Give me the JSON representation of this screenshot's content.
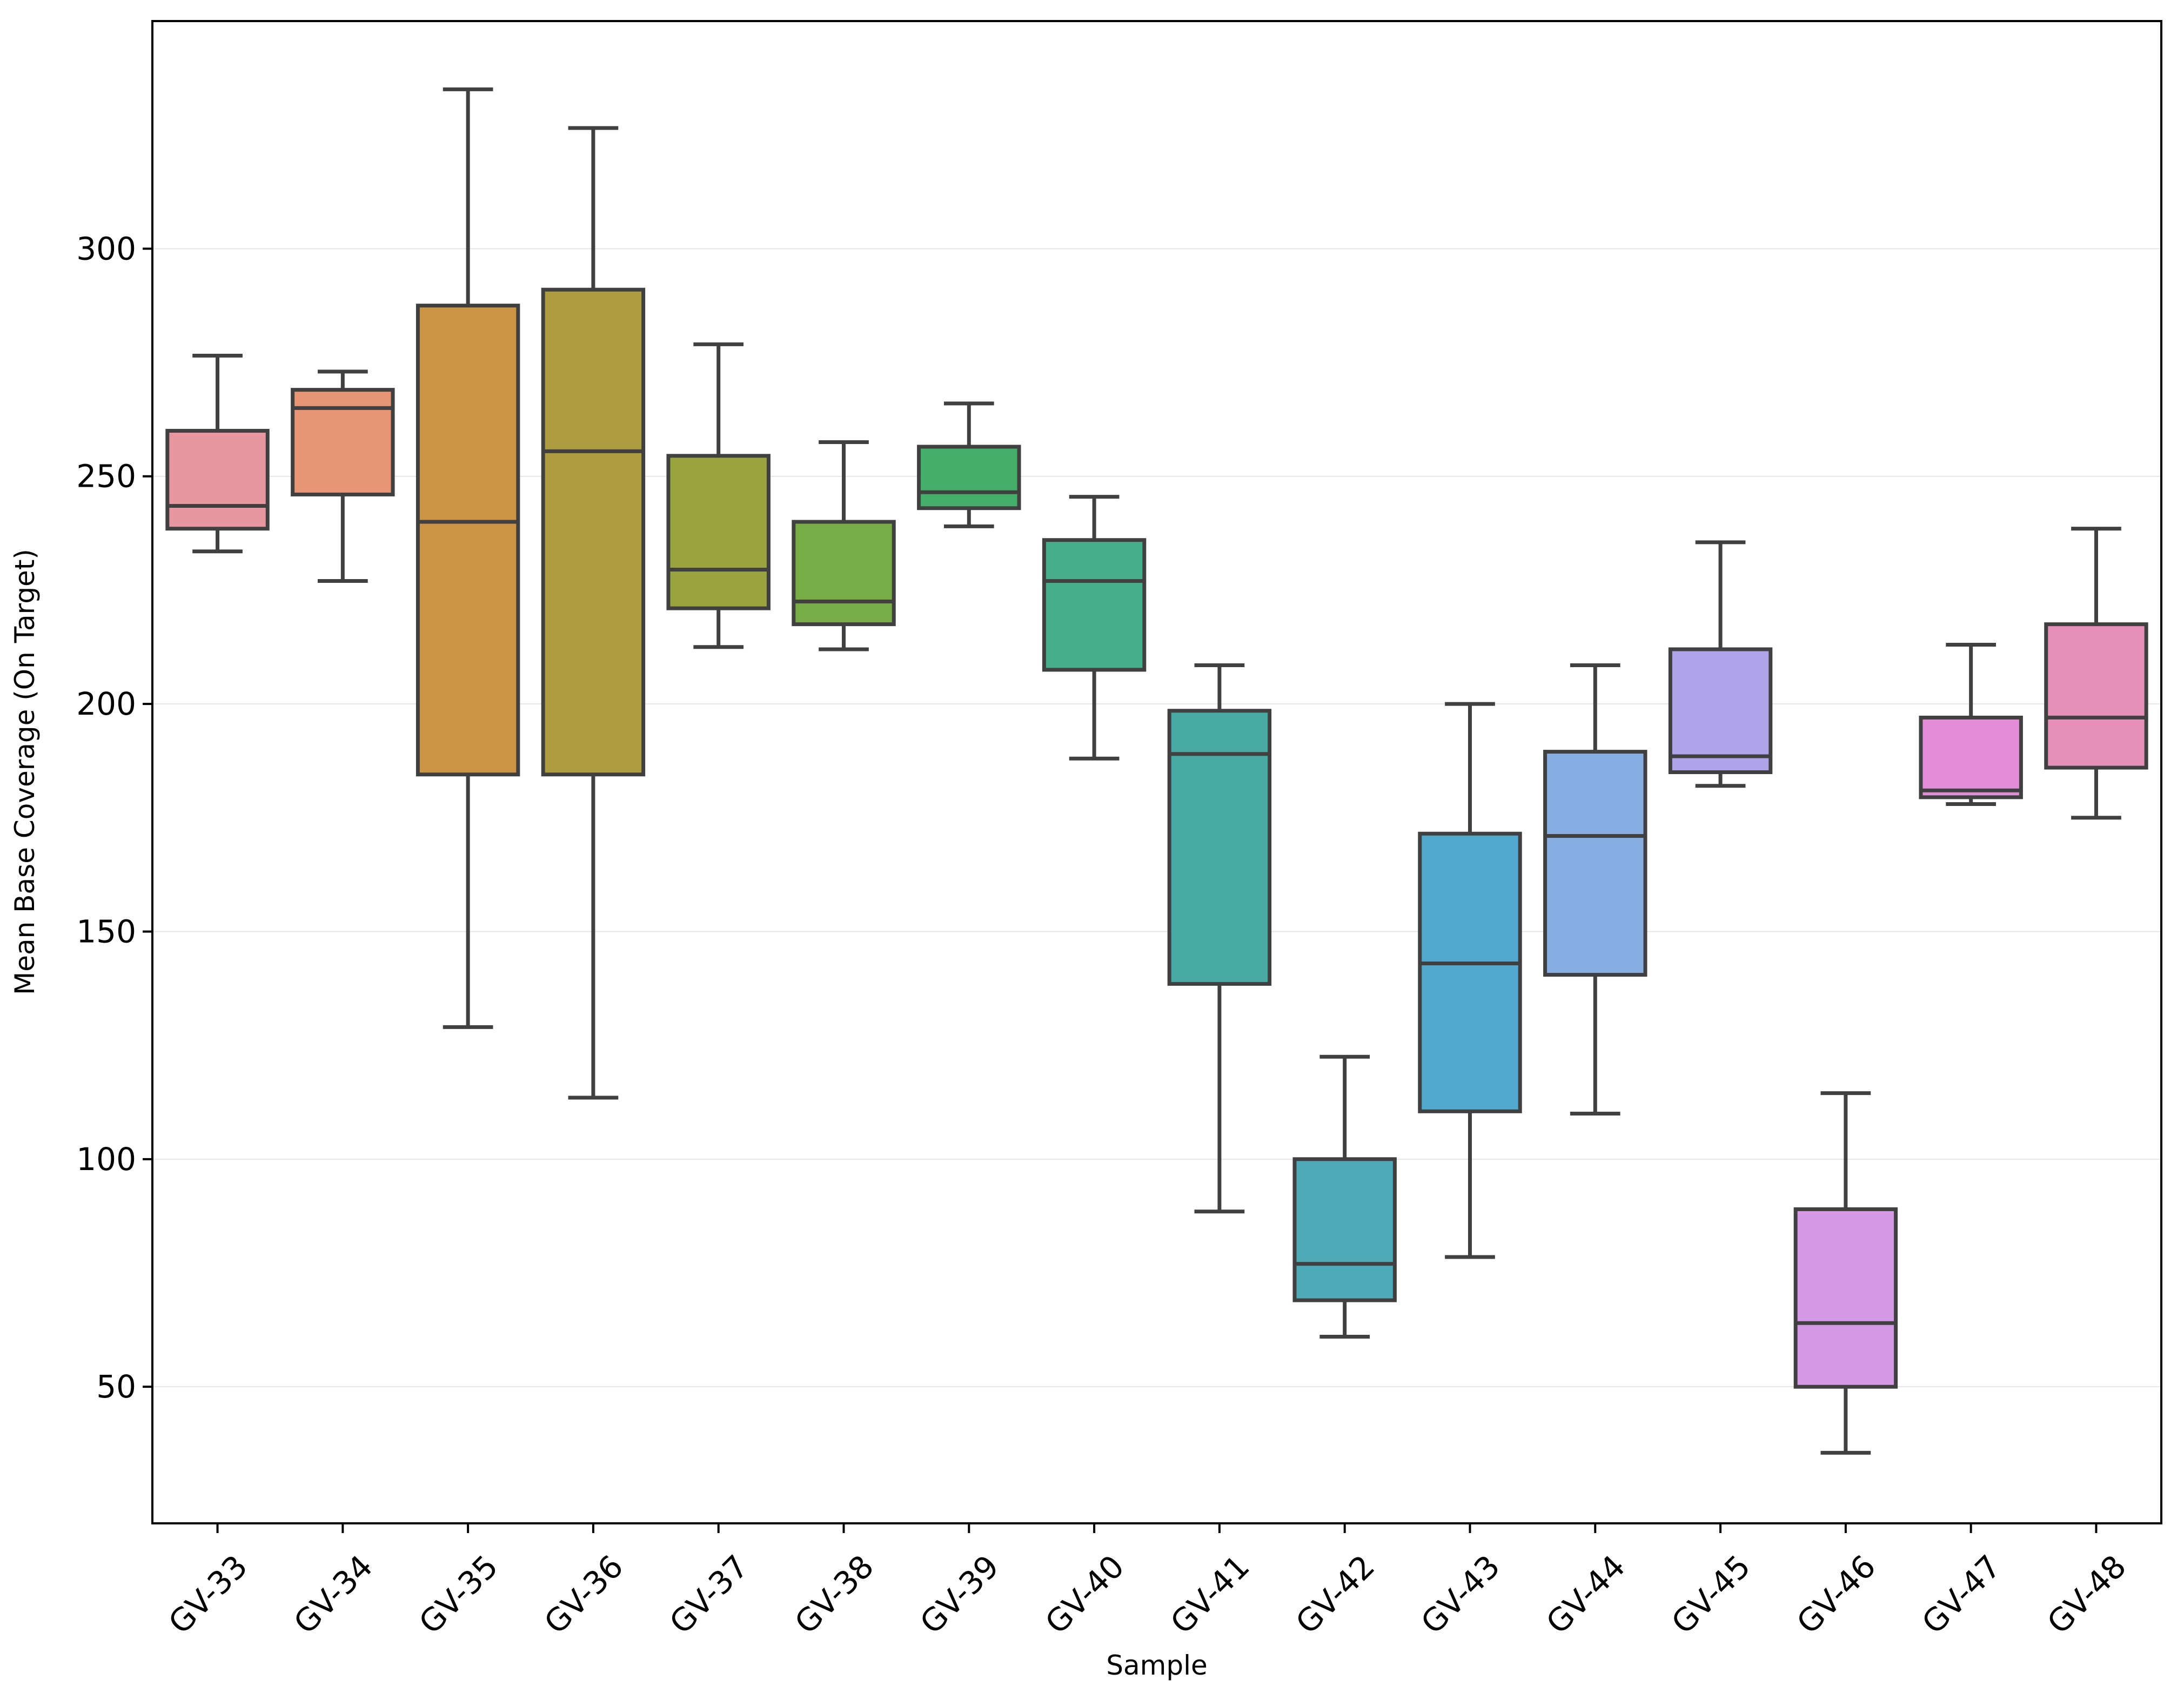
{
  "chart_data": {
    "type": "box",
    "xlabel": "Sample",
    "ylabel": "Mean Base Coverage (On Target)",
    "ylim": [
      20,
      350
    ],
    "yticks": [
      50,
      100,
      150,
      200,
      250,
      300
    ],
    "grid": "horizontal",
    "categories": [
      "GV-33",
      "GV-34",
      "GV-35",
      "GV-36",
      "GV-37",
      "GV-38",
      "GV-39",
      "GV-40",
      "GV-41",
      "GV-42",
      "GV-43",
      "GV-44",
      "GV-45",
      "GV-46",
      "GV-47",
      "GV-48"
    ],
    "boxes": [
      {
        "whislo": 233.5,
        "q1": 238.5,
        "med": 243.5,
        "q3": 260.0,
        "whishi": 276.5
      },
      {
        "whislo": 227.0,
        "q1": 246.0,
        "med": 265.0,
        "q3": 269.0,
        "whishi": 273.0
      },
      {
        "whislo": 129.0,
        "q1": 184.5,
        "med": 240.0,
        "q3": 287.5,
        "whishi": 335.0
      },
      {
        "whislo": 113.5,
        "q1": 184.5,
        "med": 255.5,
        "q3": 291.0,
        "whishi": 326.5
      },
      {
        "whislo": 212.5,
        "q1": 221.0,
        "med": 229.5,
        "q3": 254.5,
        "whishi": 279.0
      },
      {
        "whislo": 212.0,
        "q1": 217.5,
        "med": 222.5,
        "q3": 240.0,
        "whishi": 257.5
      },
      {
        "whislo": 239.0,
        "q1": 243.0,
        "med": 246.5,
        "q3": 256.5,
        "whishi": 266.0
      },
      {
        "whislo": 188.0,
        "q1": 207.5,
        "med": 227.0,
        "q3": 236.0,
        "whishi": 245.5
      },
      {
        "whislo": 88.5,
        "q1": 138.5,
        "med": 189.0,
        "q3": 198.5,
        "whishi": 208.5
      },
      {
        "whislo": 61.0,
        "q1": 69.0,
        "med": 77.0,
        "q3": 100.0,
        "whishi": 122.5
      },
      {
        "whislo": 78.5,
        "q1": 110.5,
        "med": 143.0,
        "q3": 171.5,
        "whishi": 200.0
      },
      {
        "whislo": 110.0,
        "q1": 140.5,
        "med": 171.0,
        "q3": 189.5,
        "whishi": 208.5
      },
      {
        "whislo": 182.0,
        "q1": 185.0,
        "med": 188.5,
        "q3": 212.0,
        "whishi": 235.5
      },
      {
        "whislo": 35.5,
        "q1": 50.0,
        "med": 64.0,
        "q3": 89.0,
        "whishi": 114.5
      },
      {
        "whislo": 178.0,
        "q1": 179.5,
        "med": 181.0,
        "q3": 197.0,
        "whishi": 213.0
      },
      {
        "whislo": 175.0,
        "q1": 186.0,
        "med": 197.0,
        "q3": 217.5,
        "whishi": 238.5
      }
    ],
    "colors": [
      "#e8969f",
      "#e89575",
      "#cc9546",
      "#ad9c40",
      "#99a440",
      "#78ac47",
      "#45ae6a",
      "#47ae8b",
      "#4aaba4",
      "#4eaab7",
      "#52a8cd",
      "#87aee3",
      "#b0a4ea",
      "#d598e5",
      "#e48dd8",
      "#e68fb8"
    ],
    "line_color": "#404040"
  }
}
